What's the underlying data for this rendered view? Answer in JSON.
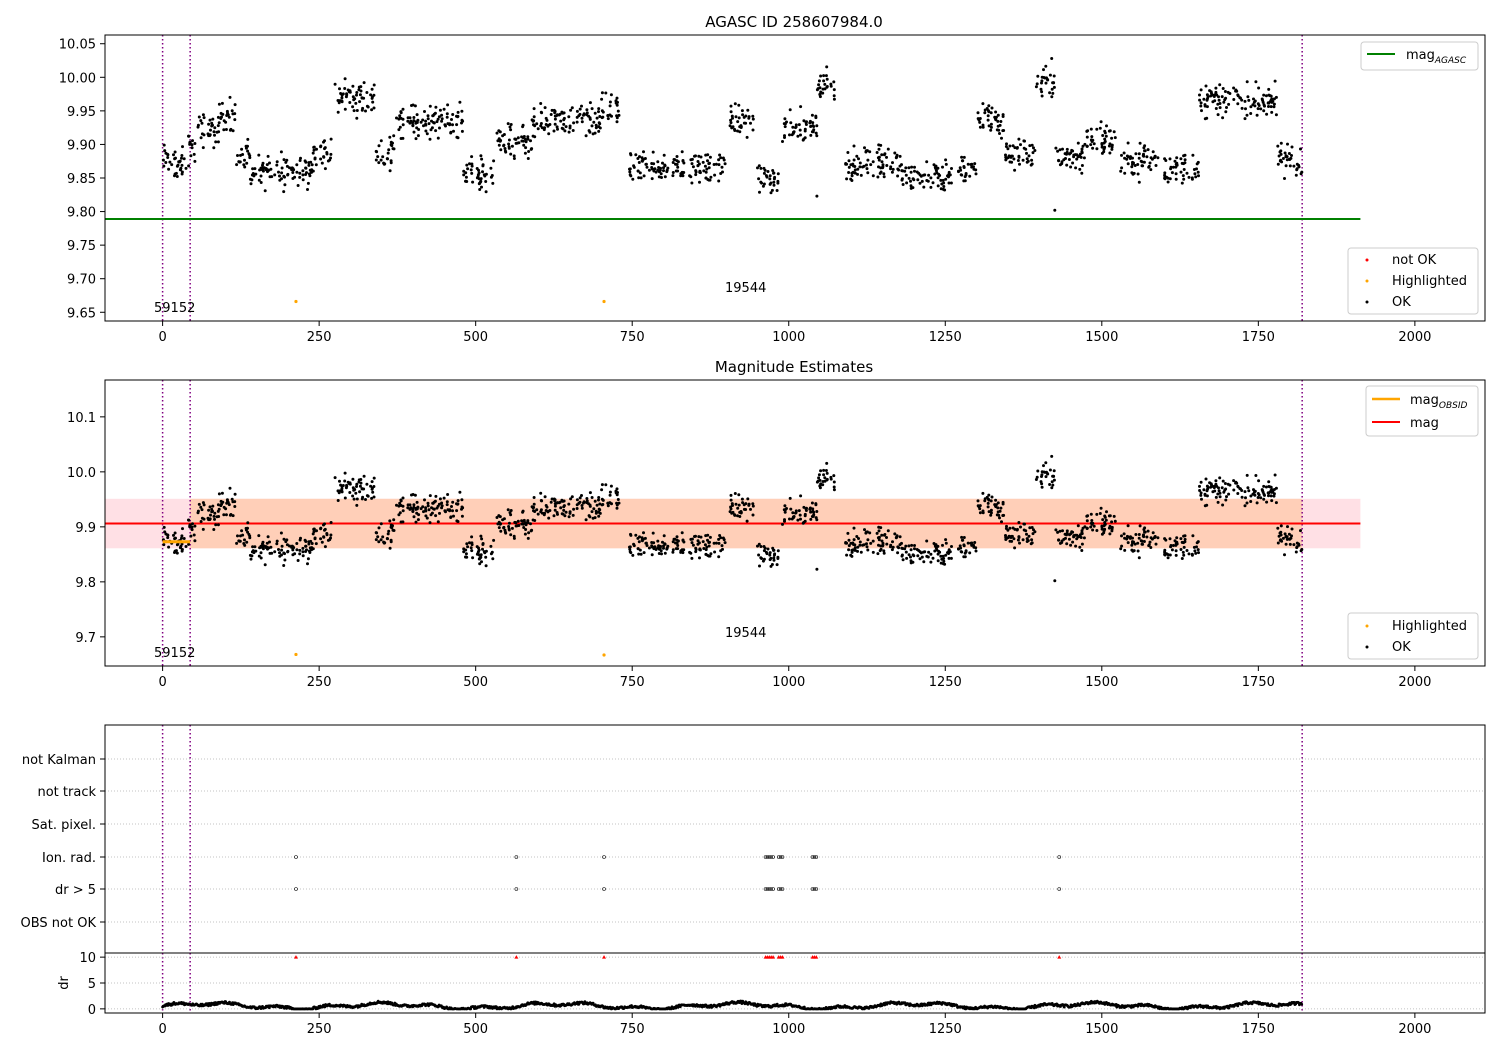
{
  "chart_data": [
    {
      "type": "scatter",
      "title": "AGASC ID 258607984.0",
      "xlim": [
        -92,
        2112
      ],
      "ylim": [
        9.637,
        10.063
      ],
      "x_ticks": [
        0,
        250,
        500,
        750,
        1000,
        1250,
        1500,
        1750,
        2000
      ],
      "y_ticks": [
        9.65,
        9.7,
        9.75,
        9.8,
        9.85,
        9.9,
        9.95,
        10.0,
        10.05
      ],
      "y_tick_labels": [
        "9.65",
        "9.70",
        "9.75",
        "9.80",
        "9.85",
        "9.90",
        "9.95",
        "10.00",
        "10.05"
      ],
      "vlines": [
        0,
        44,
        1820
      ],
      "hline": {
        "name": "mag",
        "sub": "AGASC",
        "y": 9.789,
        "x": [
          -92,
          1913
        ],
        "color": "#008000"
      },
      "highlighted": [
        {
          "x": 213,
          "y": 9.666
        },
        {
          "x": 705,
          "y": 9.666
        }
      ],
      "annotations": [
        {
          "text": "59152",
          "x": 20,
          "y": 9.65
        },
        {
          "text": "19544",
          "x": 933,
          "y": 9.678
        }
      ],
      "legend_top": [
        {
          "label": "mag",
          "sub": "AGASC",
          "color": "#008000"
        }
      ],
      "legend_bottom": [
        {
          "label": "not OK",
          "color": "#ff0000"
        },
        {
          "label": "Highlighted",
          "color": "#ffa500"
        },
        {
          "label": "OK",
          "color": "#000000"
        }
      ]
    },
    {
      "type": "scatter",
      "title": "Magnitude Estimates",
      "xlim": [
        -92,
        2112
      ],
      "ylim": [
        9.647,
        10.167
      ],
      "x_ticks": [
        0,
        250,
        500,
        750,
        1000,
        1250,
        1500,
        1750,
        2000
      ],
      "y_ticks": [
        9.7,
        9.8,
        9.9,
        10.0,
        10.1
      ],
      "y_tick_labels": [
        "9.7",
        "9.8",
        "9.9",
        "10.0",
        "10.1"
      ],
      "vlines": [
        0,
        44,
        1820
      ],
      "mag_line": {
        "y": 9.906,
        "x": [
          -92,
          1913
        ],
        "band": [
          9.861,
          9.951
        ],
        "color": "#ff0000"
      },
      "obsid_line": {
        "y": 9.873,
        "x": [
          0,
          44
        ],
        "color": "#ffa500"
      },
      "highlighted": [
        {
          "x": 213,
          "y": 9.668
        },
        {
          "x": 705,
          "y": 9.667
        }
      ],
      "annotations": [
        {
          "text": "59152",
          "x": 20,
          "y": 9.662
        },
        {
          "text": "19544",
          "x": 933,
          "y": 9.703
        }
      ],
      "legend_top": [
        {
          "label": "mag",
          "sub": "OBSID",
          "color": "#ffa500"
        },
        {
          "label": "mag",
          "sub": "",
          "color": "#ff0000"
        }
      ],
      "legend_bottom": [
        {
          "label": "Highlighted",
          "color": "#ffa500"
        },
        {
          "label": "OK",
          "color": "#000000"
        }
      ]
    },
    {
      "type": "scatter",
      "xlim": [
        -92,
        2112
      ],
      "x_ticks": [
        0,
        250,
        500,
        750,
        1000,
        1250,
        1500,
        1750,
        2000
      ],
      "vlines": [
        0,
        44,
        1820
      ],
      "flag_rows": [
        "not Kalman",
        "not track",
        "Sat. pixel.",
        "Ion. rad.",
        "dr > 5",
        "OBS not OK"
      ],
      "flags": {
        "Ion. rad.": [
          213,
          565,
          705,
          963,
          966,
          969,
          972,
          975,
          984,
          987,
          990,
          1038,
          1041,
          1044,
          1432
        ],
        "dr > 5": [
          213,
          565,
          705,
          963,
          966,
          969,
          972,
          975,
          984,
          987,
          990,
          1038,
          1041,
          1044,
          1432
        ]
      },
      "dr_ylabel": "dr",
      "dr_ylim": [
        -0.8,
        10.8
      ],
      "dr_ticks": [
        0,
        5,
        10
      ],
      "dr_high": [
        213,
        565,
        705,
        963,
        966,
        969,
        972,
        975,
        984,
        987,
        990,
        1038,
        1041,
        1044,
        1432
      ],
      "dr_high_value": 10
    }
  ]
}
